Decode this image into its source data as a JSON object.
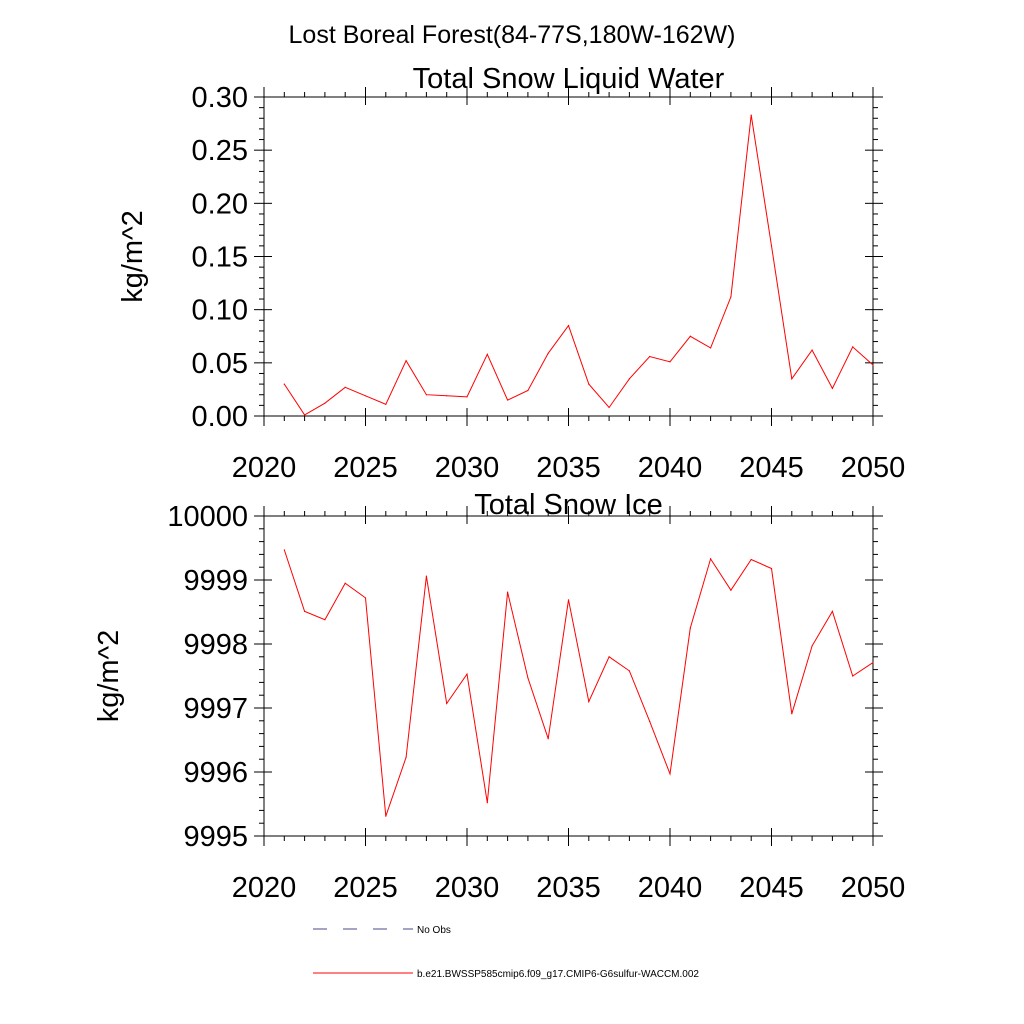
{
  "figure": {
    "title": "Lost Boreal Forest(84-77S,180W-162W)"
  },
  "chart_data": [
    {
      "type": "line",
      "title": "Total Snow Liquid Water",
      "xlabel": "",
      "ylabel": "kg/m^2",
      "xlim": [
        2020,
        2050
      ],
      "ylim": [
        0,
        0.3
      ],
      "x_ticks": [
        2020,
        2025,
        2030,
        2035,
        2040,
        2045,
        2050
      ],
      "x_tick_labels": [
        "2020",
        "2025",
        "2030",
        "2035",
        "2040",
        "2045",
        "2050"
      ],
      "y_ticks": [
        0,
        0.05,
        0.1,
        0.15,
        0.2,
        0.25,
        0.3
      ],
      "y_tick_labels": [
        "0.00",
        "0.05",
        "0.10",
        "0.15",
        "0.20",
        "0.25",
        "0.30"
      ],
      "grid": false,
      "series": [
        {
          "name": "b.e21.BWSSP585cmip6.f09_g17.CMIP6-G6sulfur-WACCM.002",
          "color": "#ff0000",
          "x": [
            2021,
            2022,
            2023,
            2024,
            2025,
            2026,
            2027,
            2028,
            2029,
            2030,
            2031,
            2032,
            2033,
            2034,
            2035,
            2036,
            2037,
            2038,
            2039,
            2040,
            2041,
            2042,
            2043,
            2044,
            2045,
            2046,
            2047,
            2048,
            2049,
            2050
          ],
          "y": [
            0.03,
            0.001,
            0.012,
            0.027,
            0.019,
            0.011,
            0.052,
            0.02,
            0.019,
            0.018,
            0.058,
            0.015,
            0.024,
            0.059,
            0.085,
            0.03,
            0.008,
            0.035,
            0.056,
            0.051,
            0.075,
            0.064,
            0.112,
            0.283,
            0.16,
            0.035,
            0.062,
            0.026,
            0.065,
            0.048
          ]
        }
      ]
    },
    {
      "type": "line",
      "title": "Total Snow Ice",
      "xlabel": "",
      "ylabel": "kg/m^2",
      "xlim": [
        2020,
        2050
      ],
      "ylim": [
        9995,
        10000
      ],
      "x_ticks": [
        2020,
        2025,
        2030,
        2035,
        2040,
        2045,
        2050
      ],
      "x_tick_labels": [
        "2020",
        "2025",
        "2030",
        "2035",
        "2040",
        "2045",
        "2050"
      ],
      "y_ticks": [
        9995,
        9996,
        9997,
        9998,
        9999,
        10000
      ],
      "y_tick_labels": [
        "9995",
        "9996",
        "9997",
        "9998",
        "9999",
        "10000"
      ],
      "grid": false,
      "series": [
        {
          "name": "b.e21.BWSSP585cmip6.f09_g17.CMIP6-G6sulfur-WACCM.002",
          "color": "#ff0000",
          "x": [
            2021,
            2022,
            2023,
            2024,
            2025,
            2026,
            2027,
            2028,
            2029,
            2030,
            2031,
            2032,
            2033,
            2034,
            2035,
            2036,
            2037,
            2038,
            2039,
            2040,
            2041,
            2042,
            2043,
            2044,
            2045,
            2046,
            2047,
            2048,
            2049,
            2050
          ],
          "y": [
            9999.47,
            9998.51,
            9998.38,
            9998.95,
            9998.72,
            9995.31,
            9996.23,
            9999.06,
            9997.07,
            9997.53,
            9995.52,
            9998.81,
            9997.47,
            9996.52,
            9998.69,
            9997.1,
            9997.8,
            9997.58,
            9996.79,
            9995.97,
            9998.25,
            9999.33,
            9998.84,
            9999.32,
            9999.18,
            9996.91,
            9997.97,
            9998.51,
            9997.5,
            9997.71
          ]
        }
      ]
    }
  ],
  "legend": {
    "placement": "bottom-center",
    "items": [
      {
        "label": "No Obs",
        "style": "dashed",
        "color": "#4a4a8a"
      },
      {
        "label": "b.e21.BWSSP585cmip6.f09_g17.CMIP6-G6sulfur-WACCM.002",
        "style": "solid",
        "color": "#ff0000"
      }
    ]
  }
}
